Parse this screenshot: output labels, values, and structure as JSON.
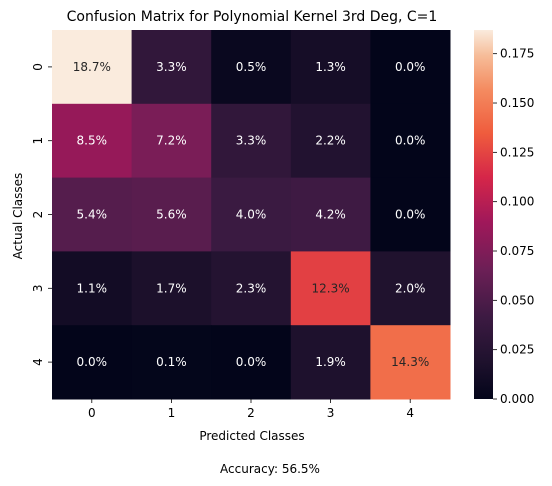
{
  "chart_data": {
    "type": "heatmap",
    "title": "Confusion Matrix for Polynomial Kernel 3rd Deg, C=1",
    "xlabel": "Predicted Classes",
    "ylabel": "Actual Classes",
    "x_categories": [
      "0",
      "1",
      "2",
      "3",
      "4"
    ],
    "y_categories": [
      "0",
      "1",
      "2",
      "3",
      "4"
    ],
    "values": [
      [
        0.187,
        0.033,
        0.005,
        0.013,
        0.0
      ],
      [
        0.085,
        0.072,
        0.033,
        0.022,
        0.0
      ],
      [
        0.054,
        0.056,
        0.04,
        0.042,
        0.0
      ],
      [
        0.011,
        0.017,
        0.023,
        0.123,
        0.02
      ],
      [
        0.0,
        0.001,
        0.0,
        0.019,
        0.143
      ]
    ],
    "cell_labels": [
      [
        "18.7%",
        "3.3%",
        "0.5%",
        "1.3%",
        "0.0%"
      ],
      [
        "8.5%",
        "7.2%",
        "3.3%",
        "2.2%",
        "0.0%"
      ],
      [
        "5.4%",
        "5.6%",
        "4.0%",
        "4.2%",
        "0.0%"
      ],
      [
        "1.1%",
        "1.7%",
        "2.3%",
        "12.3%",
        "2.0%"
      ],
      [
        "0.0%",
        "0.1%",
        "0.0%",
        "1.9%",
        "14.3%"
      ]
    ],
    "colorbar": {
      "range": [
        0.0,
        0.187
      ],
      "ticks": [
        "0.000",
        "0.025",
        "0.050",
        "0.075",
        "0.100",
        "0.125",
        "0.150",
        "0.175"
      ],
      "colormap": "rocket"
    },
    "footer": "Accuracy: 56.5%"
  }
}
